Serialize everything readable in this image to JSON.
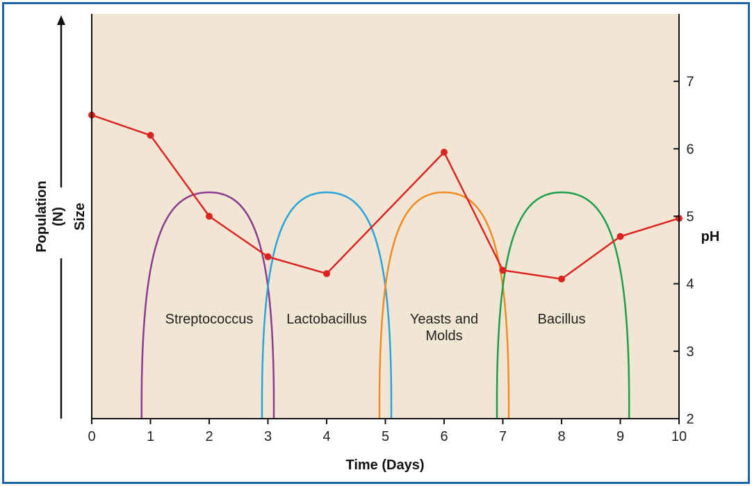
{
  "chart_data": {
    "type": "line",
    "xlabel": "Time (Days)",
    "ylabel_left": "Population Size (N)",
    "ylabel_left_lines": [
      "Population",
      "(N)",
      "Size"
    ],
    "ylabel_right": "pH",
    "xlim": [
      0,
      10
    ],
    "x_ticks": [
      0,
      1,
      2,
      3,
      4,
      5,
      6,
      7,
      8,
      9,
      10
    ],
    "ylim_right": [
      2,
      8
    ],
    "y_right_ticks": [
      2,
      3,
      4,
      5,
      6,
      7
    ],
    "grid": false,
    "legend": "none",
    "plot_background": "#f0e6d3",
    "series": [
      {
        "name": "pH",
        "color": "#dd2222",
        "axis": "right",
        "x": [
          0,
          1,
          2,
          3,
          4,
          6,
          7,
          8,
          9,
          10
        ],
        "y": [
          6.5,
          6.2,
          5.0,
          4.4,
          4.15,
          5.95,
          4.2,
          4.07,
          4.7,
          4.97
        ]
      }
    ],
    "population_curves": [
      {
        "name": "Streptococcus",
        "label_lines": [
          "Streptococcus"
        ],
        "color": "#8b3a8f",
        "start": 0.85,
        "peak": 2.0,
        "end": 3.1,
        "relative_peak": 1.0
      },
      {
        "name": "Lactobacillus",
        "label_lines": [
          "Lactobacillus"
        ],
        "color": "#29a3dc",
        "start": 2.9,
        "peak": 4.0,
        "end": 5.1,
        "relative_peak": 1.0
      },
      {
        "name": "Yeasts and Molds",
        "label_lines": [
          "Yeasts and",
          "Molds"
        ],
        "color": "#f08a24",
        "start": 4.9,
        "peak": 6.0,
        "end": 7.1,
        "relative_peak": 1.0
      },
      {
        "name": "Bacillus",
        "label_lines": [
          "Bacillus"
        ],
        "color": "#1e9e4a",
        "start": 6.9,
        "peak": 8.0,
        "end": 9.15,
        "relative_peak": 1.0
      }
    ]
  }
}
